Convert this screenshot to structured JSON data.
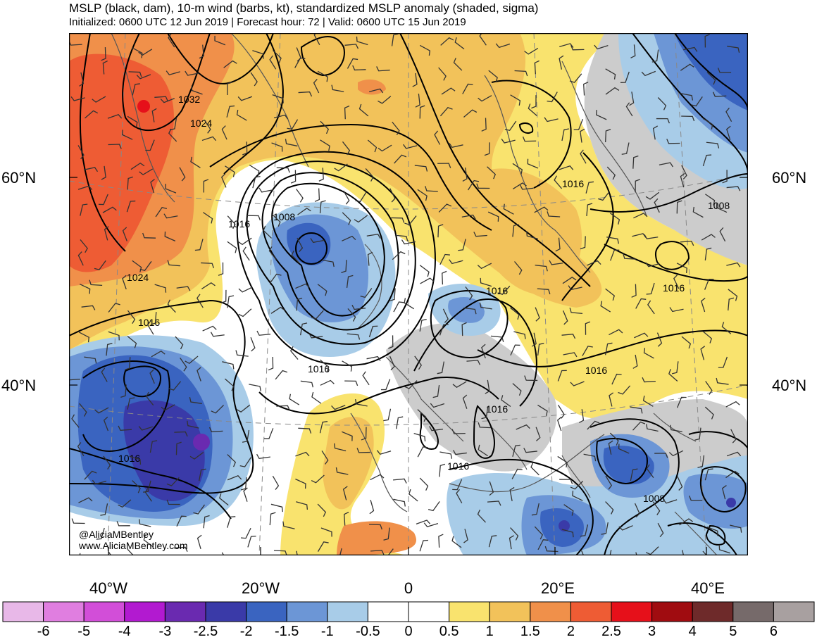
{
  "header": {
    "title": "MSLP (black, dam), 10-m wind (barbs, kt), standardized MSLP anomaly (shaded, sigma)",
    "subtitle": "Initialized: 0600 UTC 12 Jun 2019 | Forecast hour: 72 | Valid: 0600 UTC 15 Jun 2019"
  },
  "map": {
    "lat_labels": {
      "left_60": "60°N",
      "left_40": "40°N",
      "right_60": "60°N",
      "right_40": "40°N"
    },
    "lon_labels": [
      "40°W",
      "20°W",
      "0",
      "20°E",
      "40°E"
    ],
    "isobar_labels": [
      "1032",
      "1024",
      "1016",
      "1008",
      "1024",
      "1016",
      "1016",
      "1016",
      "1016",
      "1016",
      "1016",
      "1016",
      "1008",
      "1008",
      "1016",
      "1016"
    ],
    "credit_handle": "@AliciaMBentley",
    "credit_url": "www.AliciaMBentley.com"
  },
  "colorbar": {
    "labels": [
      "-6",
      "-5",
      "-4",
      "-3",
      "-2.5",
      "-2",
      "-1.5",
      "-1",
      "-0.5",
      "0",
      "0.5",
      "1",
      "1.5",
      "2",
      "2.5",
      "3",
      "4",
      "5",
      "6"
    ],
    "colors": [
      "#e8b8e8",
      "#e07ee0",
      "#d24ed8",
      "#b21ad0",
      "#6a2ab0",
      "#3a3aa8",
      "#3a64c0",
      "#6c96d6",
      "#a8cce8",
      "#ffffff",
      "#ffffff",
      "#f9e36e",
      "#f2c25a",
      "#f0904a",
      "#ee5c34",
      "#e6101a",
      "#a00c10",
      "#6e2a2a",
      "#766a6a",
      "#a8a0a0"
    ]
  }
}
